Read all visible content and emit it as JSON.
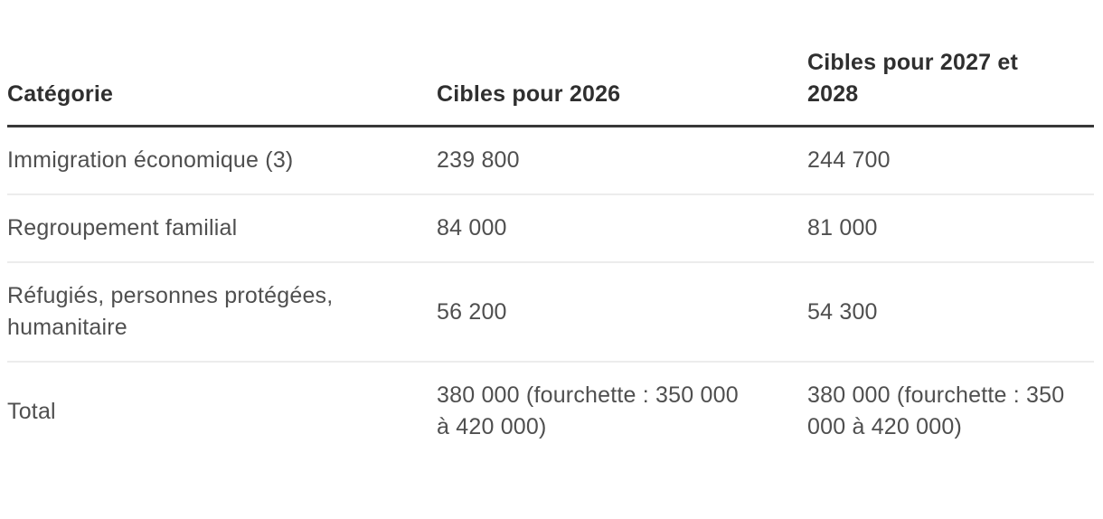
{
  "chart_data": {
    "type": "table",
    "title": "",
    "columns": [
      "Catégorie",
      "Cibles pour 2026",
      "Cibles pour 2027 et 2028"
    ],
    "rows": [
      {
        "cells": [
          "Immigration économique (3)",
          "239 800",
          "244 700"
        ]
      },
      {
        "cells": [
          "Regroupement familial",
          "84 000",
          "81 000"
        ]
      },
      {
        "cells": [
          "Réfugiés, personnes protégées, humanitaire",
          "56 200",
          "54 300"
        ]
      },
      {
        "cells": [
          "Total",
          "380 000 (fourchette : 350 000 à 420 000)",
          "380 000 (fourchette : 350 000 à 420 000)"
        ]
      }
    ],
    "layout_hints": {
      "header_alignment": "bottom",
      "body_alignment": "middle",
      "outer_borders": false,
      "thick_rule_under_header": true
    }
  },
  "colors": {
    "background": "#ffffff",
    "header_text": "#2f2f2f",
    "body_text": "#4f4f4f",
    "header_rule": "#383838",
    "row_divider": "#ececec"
  }
}
